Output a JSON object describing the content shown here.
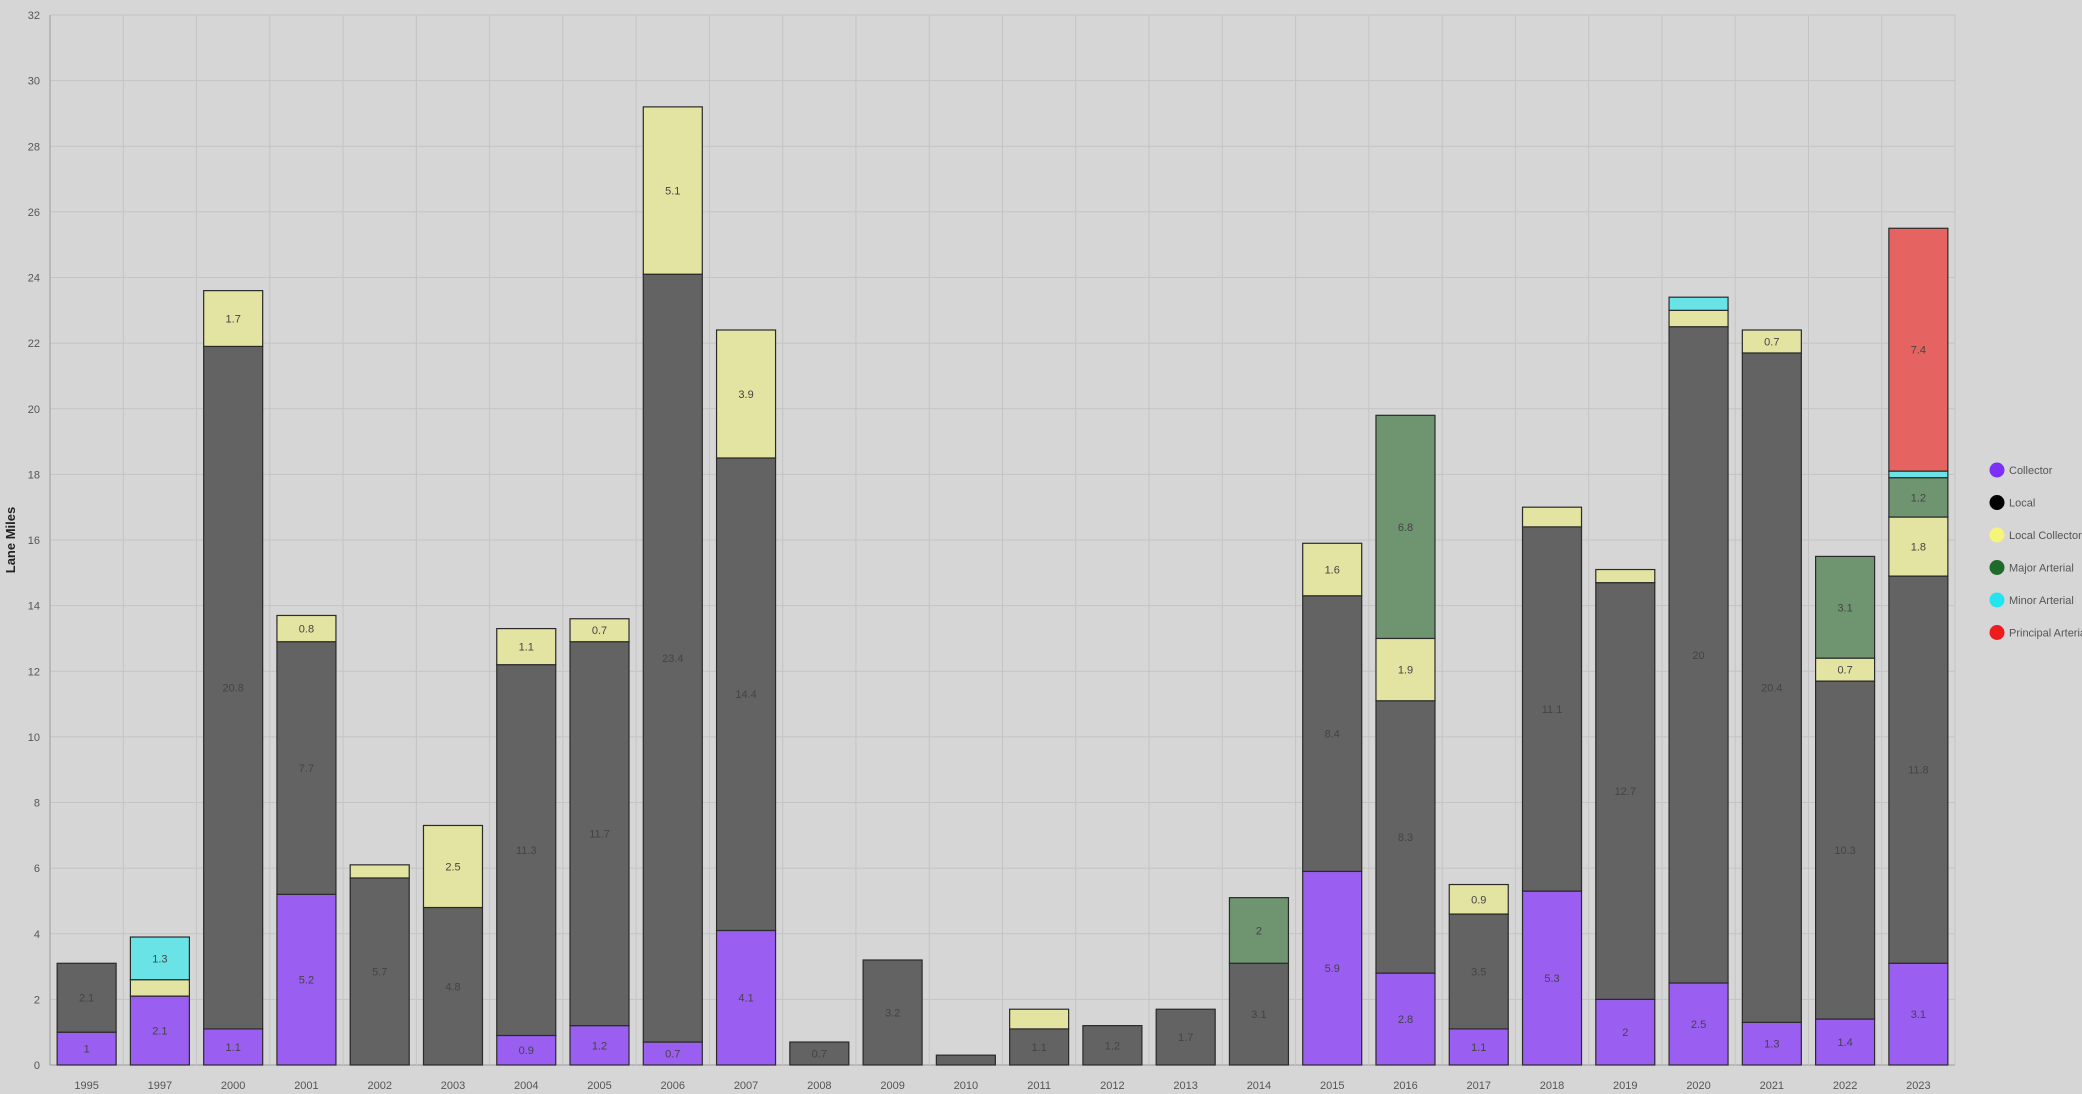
{
  "chart_data": {
    "type": "bar",
    "stacked": true,
    "ylabel": "Lane Miles",
    "xlabel": "",
    "title": "",
    "ylim": [
      0,
      32
    ],
    "yticks": [
      0,
      2,
      4,
      6,
      8,
      10,
      12,
      14,
      16,
      18,
      20,
      22,
      24,
      26,
      28,
      30,
      32
    ],
    "grid": true,
    "legend_position": "right",
    "categories": [
      "1995",
      "1997",
      "2000",
      "2001",
      "2002",
      "2003",
      "2004",
      "2005",
      "2006",
      "2007",
      "2008",
      "2009",
      "2010",
      "2011",
      "2012",
      "2013",
      "2014",
      "2015",
      "2016",
      "2017",
      "2018",
      "2019",
      "2020",
      "2021",
      "2022",
      "2023"
    ],
    "series": [
      {
        "name": "Collector",
        "color": "#7b2ff7",
        "fill": "#9a5ef0",
        "values": [
          1,
          2.1,
          1.1,
          5.2,
          0,
          0,
          0.9,
          1.2,
          0.7,
          4.1,
          0,
          0,
          0,
          0,
          0,
          0,
          0,
          5.9,
          2.8,
          1.1,
          5.3,
          2,
          2.5,
          1.3,
          1.4,
          3.1
        ],
        "labels": [
          "1",
          "2.1",
          "1.1",
          "5.2",
          "",
          "",
          "0.9",
          "1.2",
          "0.7",
          "4.1",
          "",
          "",
          "",
          "",
          "",
          "",
          "",
          "5.9",
          "2.8",
          "1.1",
          "5.3",
          "2",
          "2.5",
          "1.3",
          "1.4",
          "3.1"
        ]
      },
      {
        "name": "Local",
        "color": "#000000",
        "fill": "#636363",
        "values": [
          2.1,
          0,
          20.8,
          7.7,
          5.7,
          4.8,
          11.3,
          11.7,
          23.4,
          14.4,
          0.7,
          3.2,
          0.3,
          1.1,
          1.2,
          1.7,
          3.1,
          8.4,
          8.3,
          3.5,
          11.1,
          12.7,
          20,
          20.4,
          10.3,
          11.8
        ],
        "labels": [
          "2.1",
          "",
          "20.8",
          "7.7",
          "5.7",
          "4.8",
          "11.3",
          "11.7",
          "23.4",
          "14.4",
          "0.7",
          "3.2",
          "",
          "1.1",
          "1.2",
          "1.7",
          "3.1",
          "8.4",
          "8.3",
          "3.5",
          "11.1",
          "12.7",
          "20",
          "20.4",
          "10.3",
          "11.8"
        ]
      },
      {
        "name": "Local Collector",
        "color": "#f5f57a",
        "fill": "#e4e4a2",
        "values": [
          0,
          0.5,
          1.7,
          0.8,
          0.4,
          2.5,
          1.1,
          0.7,
          5.1,
          3.9,
          0,
          0,
          0,
          0.6,
          0,
          0,
          0,
          1.6,
          1.9,
          0.9,
          0.6,
          0.4,
          0.5,
          0.7,
          0.7,
          1.8
        ],
        "labels": [
          "",
          "",
          "1.7",
          "0.8",
          "",
          "2.5",
          "1.1",
          "0.7",
          "5.1",
          "3.9",
          "",
          "",
          "",
          "",
          "",
          "",
          "",
          "1.6",
          "1.9",
          "0.9",
          "",
          "",
          "",
          "0.7",
          "0.7",
          "1.8"
        ]
      },
      {
        "name": "Major Arterial",
        "color": "#1f6b2a",
        "fill": "#6f9470",
        "values": [
          0,
          0,
          0,
          0,
          0,
          0,
          0,
          0,
          0,
          0,
          0,
          0,
          0,
          0,
          0,
          0,
          2,
          0,
          6.8,
          0,
          0,
          0,
          0,
          0,
          3.1,
          1.2
        ],
        "labels": [
          "",
          "",
          "",
          "",
          "",
          "",
          "",
          "",
          "",
          "",
          "",
          "",
          "",
          "",
          "",
          "",
          "2",
          "",
          "6.8",
          "",
          "",
          "",
          "",
          "",
          "3.1",
          "1.2"
        ]
      },
      {
        "name": "Minor Arterial",
        "color": "#22e5f0",
        "fill": "#6ae3e6",
        "values": [
          0,
          1.3,
          0,
          0,
          0,
          0,
          0,
          0,
          0,
          0,
          0,
          0,
          0,
          0,
          0,
          0,
          0,
          0,
          0,
          0,
          0,
          0,
          0.4,
          0,
          0,
          0.2
        ],
        "labels": [
          "",
          "1.3",
          "",
          "",
          "",
          "",
          "",
          "",
          "",
          "",
          "",
          "",
          "",
          "",
          "",
          "",
          "",
          "",
          "",
          "",
          "",
          "",
          "",
          "",
          "",
          ""
        ]
      },
      {
        "name": "Principal Arterial",
        "color": "#ee1c1c",
        "fill": "#e56461",
        "values": [
          0,
          0,
          0,
          0,
          0,
          0,
          0,
          0,
          0,
          0,
          0,
          0,
          0,
          0,
          0,
          0,
          0,
          0,
          0,
          0,
          0,
          0,
          0,
          0,
          0,
          7.4
        ],
        "labels": [
          "",
          "",
          "",
          "",
          "",
          "",
          "",
          "",
          "",
          "",
          "",
          "",
          "",
          "",
          "",
          "",
          "",
          "",
          "",
          "",
          "",
          "",
          "",
          "",
          "",
          "7.4"
        ]
      }
    ]
  }
}
